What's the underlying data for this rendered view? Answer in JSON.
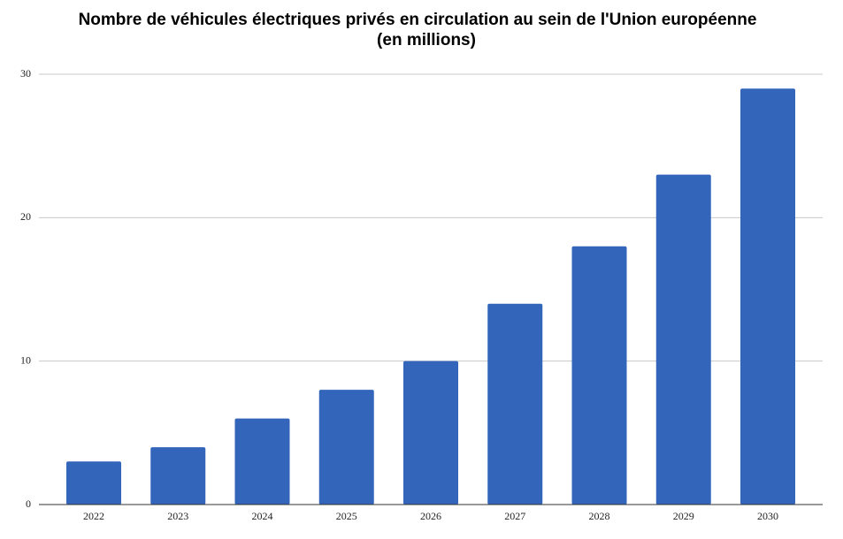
{
  "chart_data": {
    "type": "bar",
    "title": [
      "Nombre de véhicules électriques privés en circulation au sein de l'Union européenne",
      "(en millions)"
    ],
    "categories": [
      "2022",
      "2023",
      "2024",
      "2025",
      "2026",
      "2027",
      "2028",
      "2029",
      "2030"
    ],
    "values": [
      3,
      4,
      6,
      8,
      10,
      14,
      18,
      23,
      29
    ],
    "color": "#3366bb",
    "ylim": [
      0,
      30
    ],
    "yticks": [
      0,
      10,
      20,
      30
    ],
    "grid": true
  }
}
